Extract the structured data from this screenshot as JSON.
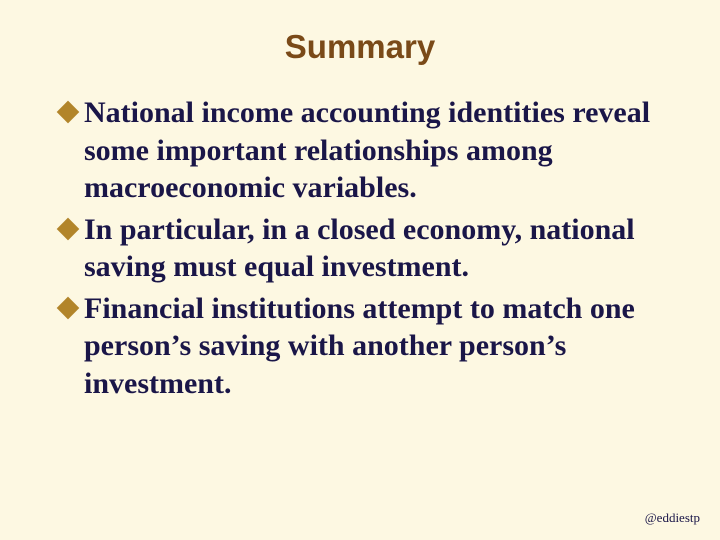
{
  "slide": {
    "background_color": "#fdf8e2",
    "title": "Summary",
    "title_color": "#7a4a18",
    "text_color": "#1a1648",
    "bullet_color": "#b2852a",
    "bullets": [
      "National income accounting identities reveal some important relationships among macroeconomic variables.",
      "In particular, in a closed economy, national saving must equal investment.",
      "Financial institutions attempt to match one person’s saving with another person’s investment."
    ],
    "footer": "@eddiestp",
    "footer_color": "#1a1648"
  }
}
